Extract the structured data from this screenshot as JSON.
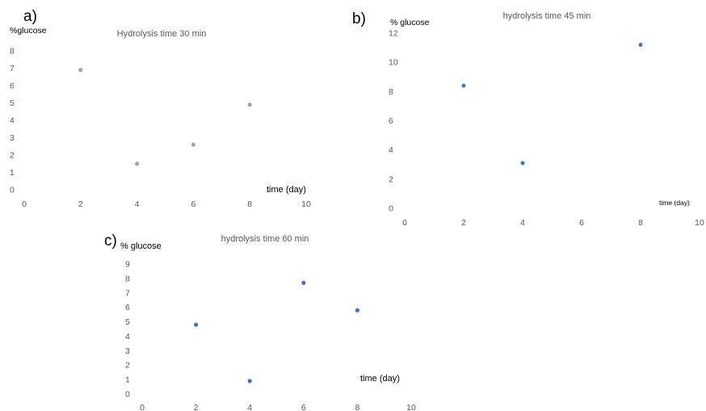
{
  "colors": {
    "panel_a_marker": "#a5a5a5",
    "panel_b_marker": "#4472c4",
    "panel_c_marker": "#4472c4",
    "tick_text": "#595959",
    "title_text": "#595959"
  },
  "chart_data": [
    {
      "type": "scatter",
      "panel_label": "a)",
      "title": "Hydrolysis time 30 min",
      "xlabel": "time (day)",
      "ylabel": "%glucose",
      "xlim": [
        0,
        10
      ],
      "ylim": [
        0,
        8
      ],
      "x_ticks": [
        "0",
        "2",
        "4",
        "6",
        "8",
        "10"
      ],
      "y_ticks": [
        "0",
        "1",
        "2",
        "3",
        "4",
        "5",
        "6",
        "7",
        "8"
      ],
      "grid": false,
      "legend": "none",
      "series": [
        {
          "x": [
            2,
            4,
            6,
            8
          ],
          "y": [
            6.9,
            1.5,
            2.6,
            4.9
          ]
        }
      ]
    },
    {
      "type": "scatter",
      "panel_label": "b)",
      "title": "hydrolysis time 45 min",
      "xlabel": "time (day)",
      "ylabel": "% glucose",
      "xlim": [
        0,
        10
      ],
      "ylim": [
        0,
        12
      ],
      "x_ticks": [
        "0",
        "2",
        "4",
        "6",
        "8",
        "10"
      ],
      "y_ticks": [
        "0",
        "2",
        "4",
        "6",
        "8",
        "10",
        "12"
      ],
      "grid": false,
      "legend": "none",
      "series": [
        {
          "x": [
            2,
            4,
            8
          ],
          "y": [
            8.4,
            3.1,
            11.2
          ]
        }
      ]
    },
    {
      "type": "scatter",
      "panel_label": "c)",
      "title": "hydrolysis time 60 min",
      "xlabel": "time (day)",
      "ylabel": "% glucose",
      "xlim": [
        0,
        10
      ],
      "ylim": [
        0,
        9
      ],
      "x_ticks": [
        "0",
        "2",
        "4",
        "6",
        "8",
        "10"
      ],
      "y_ticks": [
        "0",
        "1",
        "2",
        "3",
        "4",
        "5",
        "6",
        "7",
        "8",
        "9"
      ],
      "grid": false,
      "legend": "none",
      "series": [
        {
          "x": [
            2,
            4,
            6,
            8
          ],
          "y": [
            4.8,
            0.9,
            7.7,
            5.8
          ]
        }
      ]
    }
  ]
}
